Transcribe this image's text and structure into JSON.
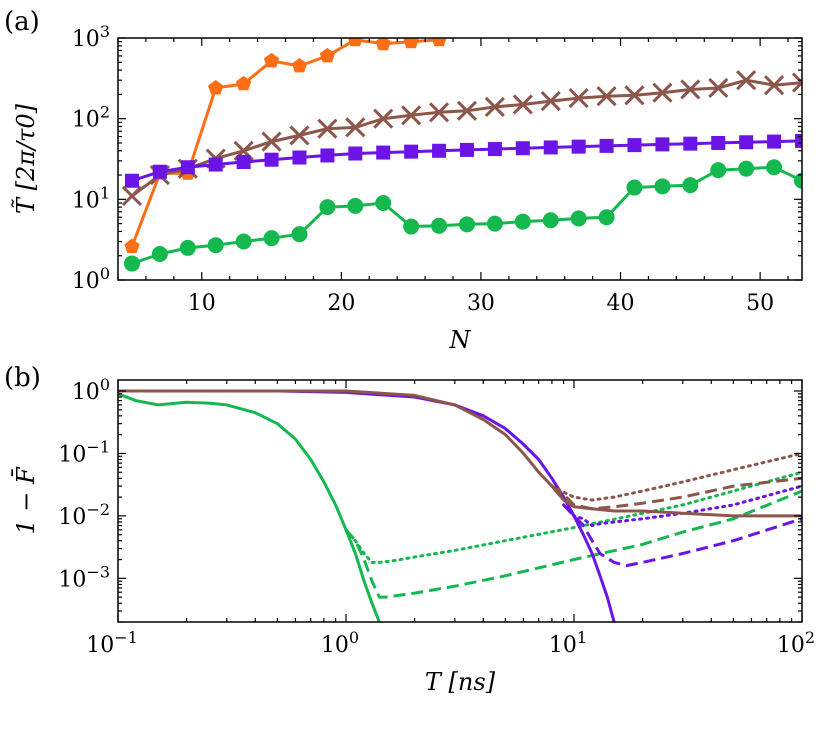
{
  "chart_data": [
    {
      "type": "line",
      "panel_label": "(a)",
      "xlabel": "N",
      "ylabel": "T̃ [2π/τ0]",
      "xscale": "linear",
      "yscale": "log",
      "xlim": [
        4,
        53
      ],
      "ylim": [
        1,
        1000
      ],
      "xticks": [
        "10",
        "20",
        "30",
        "40",
        "50"
      ],
      "yticks": [
        "10^0",
        "10^1",
        "10^2",
        "10^3"
      ],
      "grid": false,
      "series": [
        {
          "color": "#ff6e14",
          "marker": "pentagon",
          "x": [
            5,
            7,
            9,
            11,
            13,
            15,
            17,
            19,
            21,
            23,
            25,
            27
          ],
          "y": [
            2.6,
            21,
            21,
            240,
            270,
            520,
            450,
            600,
            950,
            850,
            900,
            950
          ]
        },
        {
          "color": "#8c564b",
          "marker": "x",
          "x": [
            5,
            7,
            9,
            11,
            13,
            15,
            17,
            19,
            21,
            23,
            25,
            27,
            29,
            31,
            33,
            35,
            37,
            39,
            41,
            43,
            45,
            47,
            49,
            51,
            53
          ],
          "y": [
            11,
            20,
            24,
            32,
            40,
            52,
            62,
            75,
            78,
            100,
            110,
            120,
            125,
            140,
            150,
            165,
            180,
            190,
            195,
            210,
            230,
            240,
            300,
            260,
            280
          ]
        },
        {
          "color": "#6a14e6",
          "marker": "square",
          "x": [
            5,
            7,
            9,
            11,
            13,
            15,
            17,
            19,
            21,
            23,
            25,
            27,
            29,
            31,
            33,
            35,
            37,
            39,
            41,
            43,
            45,
            47,
            49,
            51,
            53
          ],
          "y": [
            17,
            22,
            25,
            27,
            29,
            31,
            33,
            35,
            37,
            38,
            39,
            40,
            41,
            42,
            43,
            44,
            45,
            46,
            47,
            48,
            49,
            50,
            51,
            52,
            53
          ]
        },
        {
          "color": "#14b84e",
          "marker": "circle",
          "x": [
            5,
            7,
            9,
            11,
            13,
            15,
            17,
            19,
            21,
            23,
            25,
            27,
            29,
            31,
            33,
            35,
            37,
            39,
            41,
            43,
            45,
            47,
            49,
            51,
            53
          ],
          "y": [
            1.6,
            2.1,
            2.5,
            2.7,
            3.0,
            3.3,
            3.7,
            8.0,
            8.3,
            9.0,
            4.6,
            4.7,
            4.9,
            5.0,
            5.3,
            5.5,
            5.8,
            6.0,
            14,
            14.5,
            15,
            23,
            24,
            25,
            17
          ]
        }
      ]
    },
    {
      "type": "line",
      "panel_label": "(b)",
      "xlabel": "T [ns]",
      "ylabel": "1 − F̄",
      "xscale": "log",
      "yscale": "log",
      "xlim": [
        0.1,
        100
      ],
      "ylim": [
        0.0002,
        1.5
      ],
      "xticks": [
        "10^-1",
        "10^0",
        "10^1",
        "10^2"
      ],
      "yticks": [
        "10^0",
        "10^-1",
        "10^-2",
        "10^-3"
      ],
      "grid": false,
      "series": [
        {
          "color": "#14b84e",
          "style": "solid",
          "x": [
            0.1,
            0.12,
            0.15,
            0.2,
            0.25,
            0.3,
            0.4,
            0.5,
            0.6,
            0.7,
            0.8,
            0.9,
            1.0,
            1.1,
            1.2,
            1.3,
            1.4
          ],
          "y": [
            0.9,
            0.7,
            0.6,
            0.66,
            0.64,
            0.6,
            0.45,
            0.3,
            0.17,
            0.08,
            0.035,
            0.015,
            0.006,
            0.0025,
            0.0009,
            0.0004,
            0.0002
          ]
        },
        {
          "color": "#14b84e",
          "style": "dotted",
          "x": [
            1.0,
            1.1,
            1.2,
            1.3,
            1.4,
            1.6,
            2,
            3,
            5,
            10,
            20,
            30,
            50,
            100
          ],
          "y": [
            0.006,
            0.004,
            0.0025,
            0.0018,
            0.0018,
            0.0019,
            0.0022,
            0.0028,
            0.004,
            0.0065,
            0.011,
            0.015,
            0.025,
            0.05
          ]
        },
        {
          "color": "#14b84e",
          "style": "dashed",
          "x": [
            1.0,
            1.1,
            1.2,
            1.3,
            1.4,
            1.5,
            2,
            3,
            5,
            10,
            20,
            30,
            50,
            100
          ],
          "y": [
            0.006,
            0.004,
            0.002,
            0.0009,
            0.0005,
            0.0005,
            0.00058,
            0.00075,
            0.0011,
            0.002,
            0.0035,
            0.0055,
            0.009,
            0.025
          ]
        },
        {
          "color": "#6a14e6",
          "style": "solid",
          "x": [
            0.1,
            0.5,
            1,
            2,
            3,
            4,
            5,
            6,
            7,
            8,
            9,
            10,
            11,
            12,
            13,
            14,
            15
          ],
          "y": [
            1.0,
            1.0,
            0.95,
            0.8,
            0.6,
            0.4,
            0.25,
            0.14,
            0.08,
            0.04,
            0.02,
            0.01,
            0.005,
            0.0025,
            0.0011,
            0.0005,
            0.0002
          ]
        },
        {
          "color": "#6a14e6",
          "style": "dotted",
          "x": [
            9,
            10,
            11,
            12,
            13,
            15,
            20,
            30,
            50,
            100
          ],
          "y": [
            0.015,
            0.01,
            0.009,
            0.007,
            0.0075,
            0.008,
            0.009,
            0.011,
            0.015,
            0.03
          ]
        },
        {
          "color": "#6a14e6",
          "style": "dashed",
          "x": [
            9,
            10,
            11,
            12,
            13,
            15,
            17,
            20,
            30,
            50,
            100
          ],
          "y": [
            0.015,
            0.01,
            0.007,
            0.004,
            0.0025,
            0.0018,
            0.0016,
            0.0018,
            0.0025,
            0.004,
            0.009
          ]
        },
        {
          "color": "#8c564b",
          "style": "solid",
          "x": [
            0.1,
            1,
            2,
            3,
            4,
            5,
            6,
            7,
            8,
            9,
            10,
            12,
            15,
            20,
            30,
            50,
            100
          ],
          "y": [
            1.0,
            1.0,
            0.85,
            0.6,
            0.35,
            0.2,
            0.1,
            0.05,
            0.03,
            0.018,
            0.014,
            0.013,
            0.012,
            0.012,
            0.011,
            0.01,
            0.01
          ]
        },
        {
          "color": "#8c564b",
          "style": "dotted",
          "x": [
            8,
            9,
            10,
            12,
            15,
            20,
            30,
            50,
            100
          ],
          "y": [
            0.03,
            0.024,
            0.02,
            0.018,
            0.02,
            0.025,
            0.035,
            0.055,
            0.1
          ]
        },
        {
          "color": "#8c564b",
          "style": "dashed",
          "x": [
            8,
            9,
            10,
            12,
            15,
            20,
            30,
            50,
            100
          ],
          "y": [
            0.03,
            0.022,
            0.015,
            0.013,
            0.014,
            0.016,
            0.02,
            0.03,
            0.04
          ]
        }
      ]
    }
  ]
}
